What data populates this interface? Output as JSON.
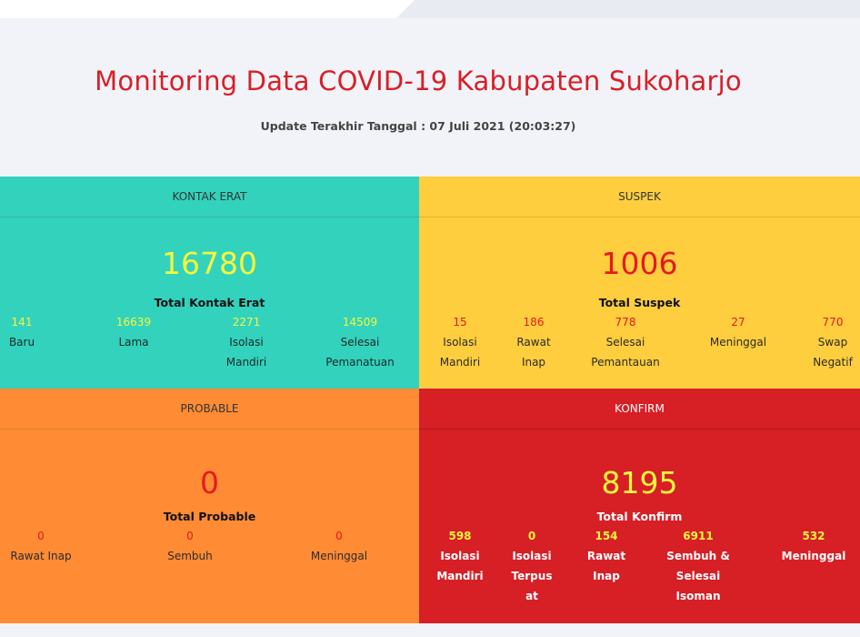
{
  "header": {
    "title": "Monitoring Data COVID-19 Kabupaten Sukoharjo",
    "subtitle": "Update Terakhir Tanggal : 07 Juli 2021 (20:03:27)"
  },
  "colors": {
    "kontak_erat": "#33d2bd",
    "suspek": "#fece3e",
    "probable": "#ff8c35",
    "konfirm": "#d71f26",
    "title_red": "#d81f27"
  },
  "kontak_erat": {
    "heading": "KONTAK ERAT",
    "total": "16780",
    "total_label": "Total Kontak Erat",
    "stats": [
      {
        "value": "141",
        "label": "Baru"
      },
      {
        "value": "16639",
        "label": "Lama"
      },
      {
        "value": "2271",
        "label_1": "Isolasi",
        "label_2": "Mandiri"
      },
      {
        "value": "14509",
        "label_1": "Selesai",
        "label_2": "Pemanatuan"
      }
    ]
  },
  "suspek": {
    "heading": "SUSPEK",
    "total": "1006",
    "total_label": "Total Suspek",
    "stats": [
      {
        "value": "15",
        "label_1": "Isolasi",
        "label_2": "Mandiri"
      },
      {
        "value": "186",
        "label_1": "Rawat",
        "label_2": "Inap"
      },
      {
        "value": "778",
        "label_1": "Selesai",
        "label_2": "Pemantauan"
      },
      {
        "value": "27",
        "label": "Meninggal"
      },
      {
        "value": "770",
        "label_1": "Swap",
        "label_2": "Negatif"
      }
    ]
  },
  "probable": {
    "heading": "PROBABLE",
    "total": "0",
    "total_label": "Total Probable",
    "stats": [
      {
        "value": "0",
        "label": "Rawat Inap"
      },
      {
        "value": "0",
        "label": "Sembuh"
      },
      {
        "value": "0",
        "label": "Meninggal"
      }
    ]
  },
  "konfirm": {
    "heading": "KONFIRM",
    "total": "8195",
    "total_label": "Total Konfirm",
    "stats": [
      {
        "value": "598",
        "label_1": "Isolasi",
        "label_2": "Mandiri"
      },
      {
        "value": "0",
        "label_1": "Isolasi",
        "label_2": "Terpus",
        "label_3": "at"
      },
      {
        "value": "154",
        "label_1": "Rawat",
        "label_2": "Inap"
      },
      {
        "value": "6911",
        "label_1": "Sembuh &",
        "label_2": "Selesai",
        "label_3": "Isoman"
      },
      {
        "value": "532",
        "label": "Meninggal"
      }
    ]
  }
}
